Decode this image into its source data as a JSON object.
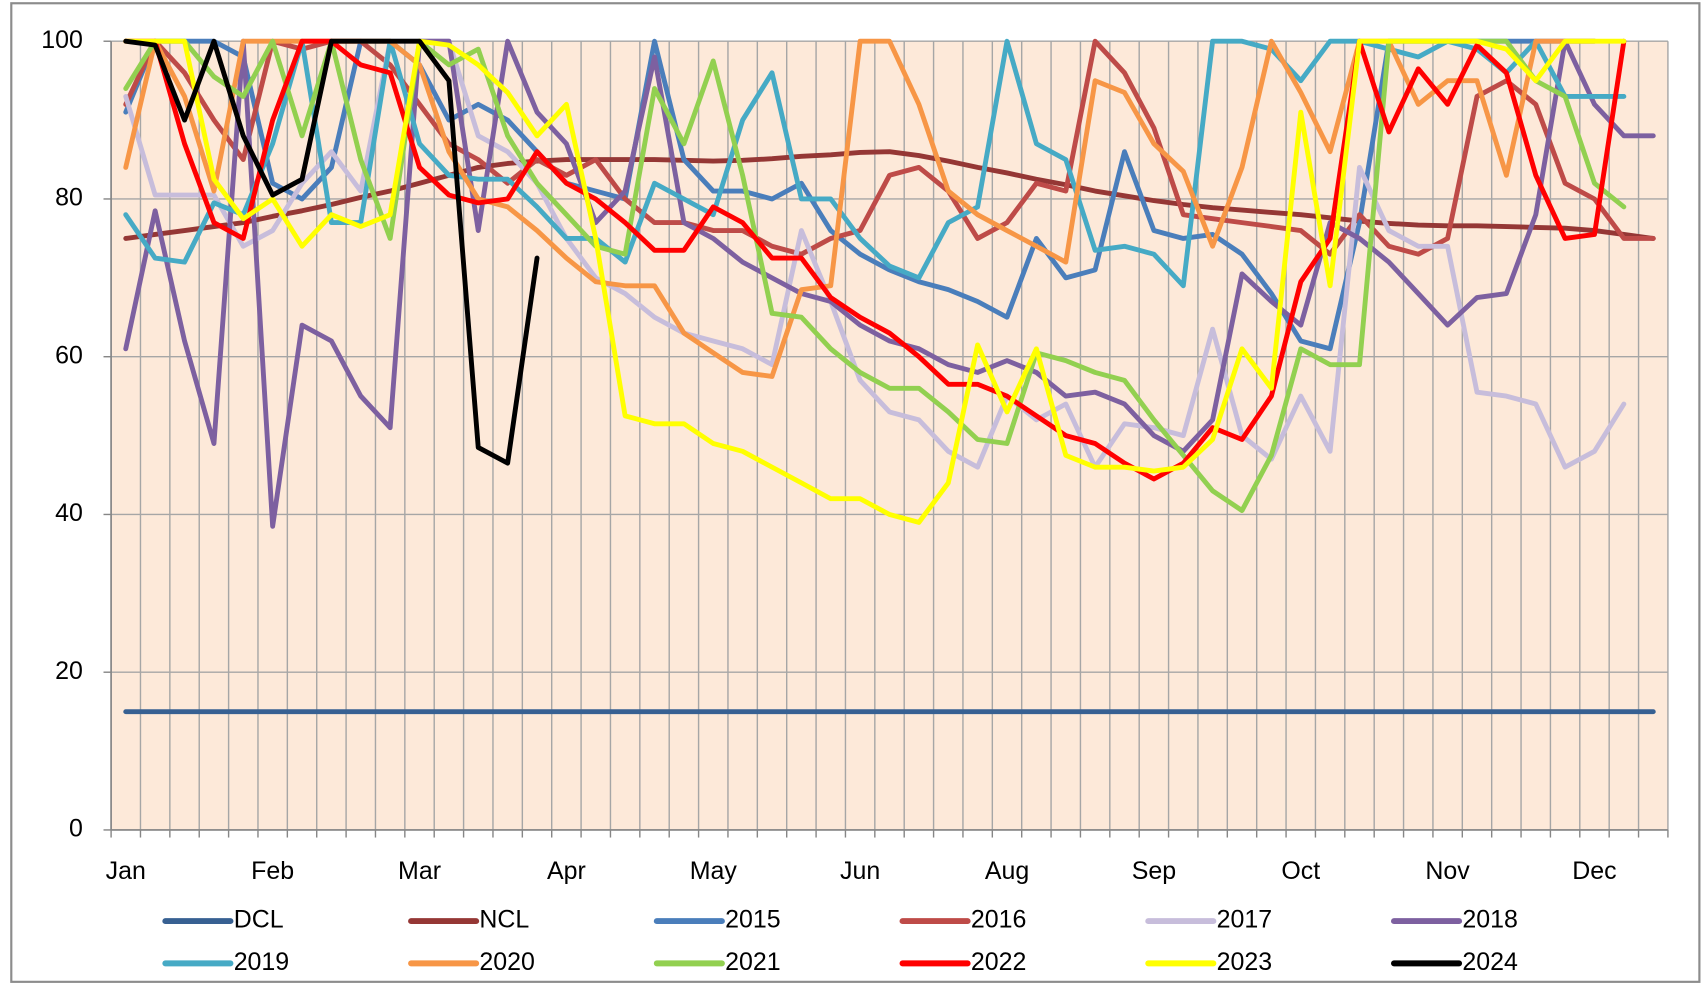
{
  "chart_data": {
    "type": "line",
    "categories": [
      "Jan",
      null,
      null,
      null,
      null,
      "Feb",
      null,
      null,
      null,
      null,
      "Mar",
      null,
      null,
      null,
      null,
      "Apr",
      null,
      null,
      null,
      null,
      "May",
      null,
      null,
      null,
      null,
      "Jun",
      null,
      null,
      null,
      null,
      "Aug",
      null,
      null,
      null,
      null,
      "Sep",
      null,
      null,
      null,
      null,
      "Oct",
      null,
      null,
      null,
      null,
      "Nov",
      null,
      null,
      null,
      null,
      "Dec",
      null,
      null
    ],
    "ylim": [
      0,
      100
    ],
    "yticks": [
      0,
      20,
      40,
      60,
      80,
      100
    ],
    "grid": true,
    "series": [
      {
        "name": "DCL",
        "color": "#376092",
        "values": [
          15,
          15,
          15,
          15,
          15,
          15,
          15,
          15,
          15,
          15,
          15,
          15,
          15,
          15,
          15,
          15,
          15,
          15,
          15,
          15,
          15,
          15,
          15,
          15,
          15,
          15,
          15,
          15,
          15,
          15,
          15,
          15,
          15,
          15,
          15,
          15,
          15,
          15,
          15,
          15,
          15,
          15,
          15,
          15,
          15,
          15,
          15,
          15,
          15,
          15,
          15,
          15,
          15
        ]
      },
      {
        "name": "NCL",
        "color": "#953735",
        "values": [
          75,
          75.5,
          76,
          76.5,
          77,
          77.8,
          78.5,
          79.3,
          80.2,
          81,
          82,
          83,
          84,
          84.5,
          84.8,
          85,
          85,
          85,
          85,
          84.9,
          84.8,
          84.9,
          85.1,
          85.4,
          85.6,
          85.9,
          86,
          85.5,
          84.8,
          84,
          83.3,
          82.5,
          81.8,
          81,
          80.4,
          79.8,
          79.3,
          78.9,
          78.6,
          78.3,
          78,
          77.6,
          77.2,
          76.9,
          76.7,
          76.6,
          76.6,
          76.5,
          76.4,
          76.3,
          76,
          75.5,
          75
        ]
      },
      {
        "name": "2015",
        "color": "#4a7ebb",
        "values": [
          91,
          100,
          100,
          100,
          98,
          82,
          80,
          84,
          100,
          100,
          97,
          90,
          92,
          90,
          86,
          82,
          81,
          80,
          100,
          85,
          81,
          81,
          80,
          82,
          76,
          73,
          71,
          69.5,
          68.5,
          67,
          65,
          75,
          70,
          71,
          86,
          76,
          75,
          75.5,
          73,
          68,
          62,
          61,
          77,
          100,
          100,
          100,
          100,
          100,
          100,
          100,
          100,
          null,
          null
        ]
      },
      {
        "name": "2016",
        "color": "#be4b48",
        "values": [
          92,
          100,
          96,
          90,
          85,
          100,
          99,
          100,
          100,
          97,
          92,
          87,
          85,
          82,
          85,
          83,
          85,
          80,
          77,
          77,
          76,
          76,
          74,
          73,
          75,
          76,
          83,
          84,
          81,
          75,
          77,
          82,
          81,
          100,
          96,
          89,
          78,
          77.5,
          77,
          76.5,
          76,
          73,
          78,
          74,
          73,
          75,
          93,
          95,
          92,
          82,
          80,
          75,
          75
        ]
      },
      {
        "name": "2017",
        "color": "#c7bddb",
        "values": [
          93,
          80.5,
          80.5,
          80.5,
          74,
          76,
          82,
          86,
          81,
          100,
          100,
          100,
          88,
          86,
          82,
          75,
          70,
          68,
          65,
          63,
          62,
          61,
          59,
          76,
          67,
          57,
          53,
          52,
          48,
          46,
          55,
          52,
          54,
          46,
          51.5,
          51,
          50,
          63.5,
          50,
          47,
          55,
          48,
          84,
          76,
          74,
          74,
          55.5,
          55,
          54,
          46,
          48,
          54,
          null
        ]
      },
      {
        "name": "2018",
        "color": "#7d60a0",
        "values": [
          61,
          78.5,
          62,
          49,
          100,
          38.5,
          64,
          62,
          55,
          51,
          100,
          100,
          76,
          100,
          91,
          87,
          77,
          81,
          98,
          77,
          75,
          72,
          70,
          68,
          67,
          64,
          62,
          61,
          59,
          58,
          59.5,
          58,
          55,
          55.5,
          54,
          50,
          48,
          52,
          70.5,
          67,
          64,
          77,
          75,
          72,
          68,
          64,
          67.5,
          68,
          78,
          100,
          92,
          88,
          88
        ]
      },
      {
        "name": "2019",
        "color": "#46aac5",
        "values": [
          78,
          72.5,
          72,
          79.5,
          78,
          87,
          100,
          77,
          77,
          100,
          87,
          83,
          82.5,
          82.5,
          79,
          75,
          75,
          72,
          82,
          80,
          78,
          90,
          96,
          80,
          80,
          75,
          71.5,
          70,
          77,
          79,
          100,
          87,
          85,
          73.5,
          74,
          73,
          69,
          100,
          100,
          99,
          95,
          100,
          100,
          99,
          98,
          100,
          99,
          96,
          100,
          93,
          93,
          93,
          null
        ]
      },
      {
        "name": "2020",
        "color": "#f79646",
        "values": [
          84,
          100,
          93,
          81,
          100,
          100,
          100,
          100,
          100,
          100,
          97,
          86,
          80,
          79,
          76,
          72.5,
          69.5,
          69,
          69,
          63,
          60.5,
          58,
          57.5,
          68.5,
          69,
          100,
          100,
          92,
          81,
          78,
          76,
          74,
          72,
          95,
          93.5,
          87,
          83.5,
          74,
          84,
          100,
          93.5,
          86,
          100,
          100,
          92,
          95,
          95,
          83,
          100,
          100,
          100,
          null,
          null
        ]
      },
      {
        "name": "2021",
        "color": "#92d050",
        "values": [
          94,
          100,
          100,
          95.5,
          93,
          100,
          88,
          100,
          85,
          75,
          100,
          97,
          99,
          88,
          82,
          78,
          74,
          73,
          94,
          87,
          97.5,
          83,
          65.5,
          65,
          61,
          58,
          56,
          56,
          53,
          49.5,
          49,
          60.5,
          59.5,
          58,
          57,
          52,
          47.5,
          43,
          40.5,
          47.5,
          61,
          59,
          59,
          100,
          100,
          100,
          100,
          100,
          95,
          93,
          82,
          79,
          null
        ]
      },
      {
        "name": "2022",
        "color": "#ff0000",
        "values": [
          100,
          100,
          87,
          77,
          75,
          90,
          100,
          100,
          97,
          96,
          84,
          80.5,
          79.5,
          80,
          86,
          82,
          80,
          77,
          73.5,
          73.5,
          79,
          77,
          72.5,
          72.5,
          67.5,
          65,
          63,
          60,
          56.5,
          56.5,
          55,
          52.5,
          50,
          49,
          46.5,
          44.5,
          46.5,
          51,
          49.5,
          55,
          69.5,
          75,
          100,
          88.5,
          96.5,
          92,
          99.5,
          96,
          83,
          75,
          75.5,
          100,
          null
        ]
      },
      {
        "name": "2023",
        "color": "#ffff00",
        "values": [
          100,
          100,
          100,
          82.5,
          77.5,
          80,
          74,
          78,
          76.5,
          78,
          100,
          99.5,
          97,
          93.5,
          88,
          92,
          75,
          52.5,
          51.5,
          51.5,
          49,
          48,
          46,
          44,
          42,
          42,
          40,
          39,
          44,
          61.5,
          53,
          61,
          47.5,
          46,
          46,
          45.5,
          46,
          49.5,
          61,
          56,
          91,
          69,
          100,
          100,
          100,
          100,
          100,
          99,
          95,
          100,
          100,
          100,
          null
        ]
      },
      {
        "name": "2024",
        "color": "#000000",
        "values": [
          100,
          99.5,
          90,
          100,
          88,
          80.5,
          82.5,
          100,
          100,
          100,
          100,
          95,
          48.5,
          46.5,
          72.5,
          null,
          null,
          null,
          null,
          null,
          null,
          null,
          null,
          null,
          null,
          null,
          null,
          null,
          null,
          null,
          null,
          null,
          null,
          null,
          null,
          null,
          null,
          null,
          null,
          null,
          null,
          null,
          null,
          null,
          null,
          null,
          null,
          null,
          null,
          null,
          null,
          null,
          null
        ]
      }
    ]
  }
}
